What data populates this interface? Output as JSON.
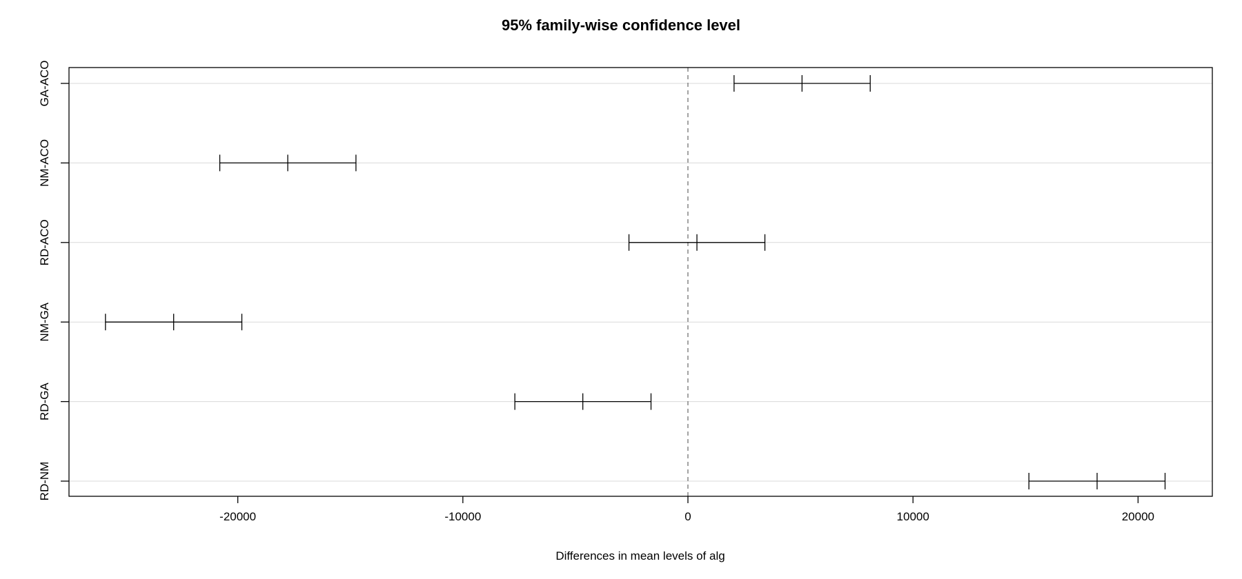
{
  "chart_data": {
    "type": "errorbar",
    "title": "95% family-wise confidence level",
    "xlabel": "Differences in mean levels of alg",
    "ylabel": "",
    "xlim": [
      -27500,
      23300
    ],
    "x_ticks": [
      -20000,
      -10000,
      0,
      10000,
      20000
    ],
    "x_tick_labels": [
      "-20000",
      "-10000",
      "0",
      "10000",
      "20000"
    ],
    "reference_line": 0,
    "grid": "horizontal",
    "categories": [
      "GA-ACO",
      "NM-ACO",
      "RD-ACO",
      "NM-GA",
      "RD-GA",
      "RD-NM"
    ],
    "intervals": [
      {
        "label": "GA-ACO",
        "lwr": 2050,
        "diff": 5070,
        "upr": 8100
      },
      {
        "label": "NM-ACO",
        "lwr": -20800,
        "diff": -17780,
        "upr": -14750
      },
      {
        "label": "RD-ACO",
        "lwr": -2620,
        "diff": 400,
        "upr": 3420
      },
      {
        "label": "NM-GA",
        "lwr": -25880,
        "diff": -22850,
        "upr": -19820
      },
      {
        "label": "RD-GA",
        "lwr": -7690,
        "diff": -4670,
        "upr": -1640
      },
      {
        "label": "RD-NM",
        "lwr": 15150,
        "diff": 18180,
        "upr": 21200
      }
    ],
    "colors": {
      "line": "#000000",
      "grid": "#d9d9d9",
      "reference": "#666666"
    }
  }
}
